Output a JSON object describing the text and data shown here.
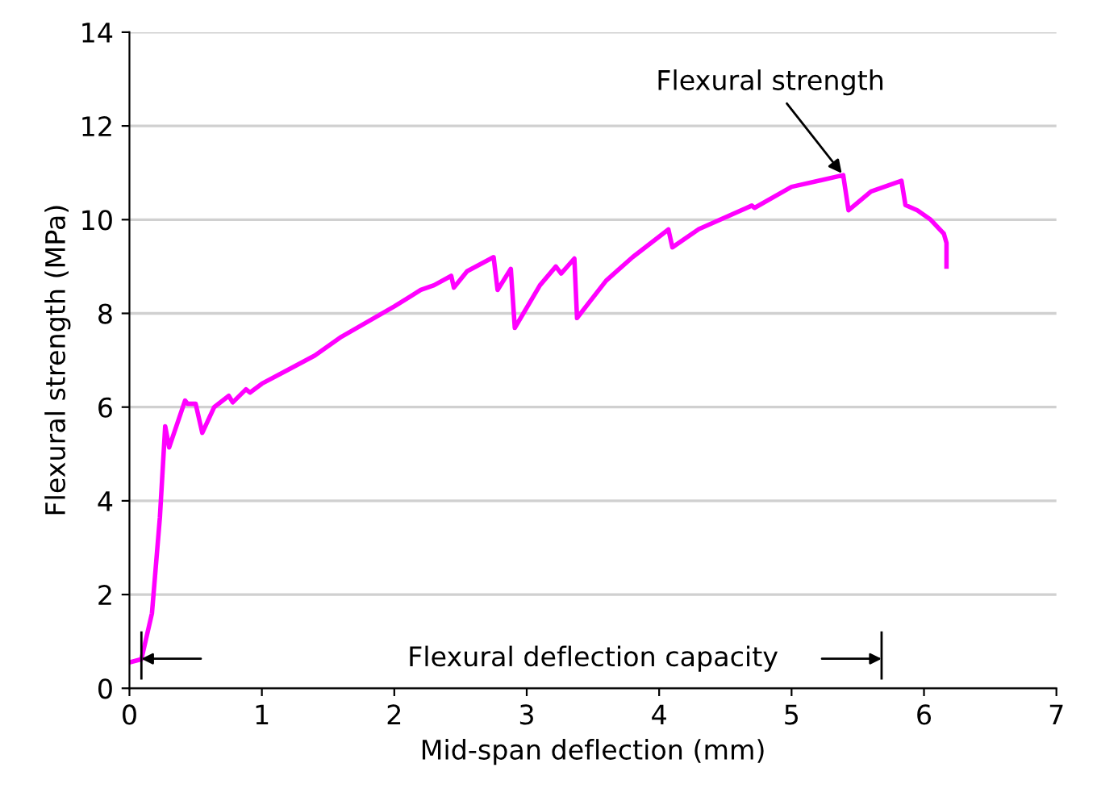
{
  "chart_data": {
    "type": "line",
    "xlabel": "Mid-span deflection (mm)",
    "ylabel": "Flexural strength (MPa)",
    "xlim": [
      0,
      7
    ],
    "xticks": [
      0,
      1,
      2,
      3,
      4,
      5,
      6,
      7
    ],
    "ylim": [
      0,
      14
    ],
    "yticks": [
      0,
      2,
      4,
      6,
      8,
      10,
      12,
      14
    ],
    "grid": "y",
    "marker": "none",
    "line_style": "solid",
    "series": [
      {
        "color": "#ff00ff",
        "x": [
          0,
          0.09,
          0.17,
          0.23,
          0.27,
          0.3,
          0.42,
          0.44,
          0.5,
          0.55,
          0.64,
          0.75,
          0.78,
          0.88,
          0.91,
          1.0,
          1.2,
          1.4,
          1.6,
          2.0,
          2.2,
          2.3,
          2.43,
          2.45,
          2.55,
          2.75,
          2.78,
          2.88,
          2.91,
          3.1,
          3.22,
          3.26,
          3.36,
          3.38,
          3.6,
          3.8,
          4.07,
          4.1,
          4.3,
          4.7,
          4.72,
          5.0,
          5.39,
          5.43,
          5.6,
          5.83,
          5.86,
          5.95,
          6.05,
          6.15,
          6.17,
          6.17
        ],
        "values": [
          0.55,
          0.62,
          1.6,
          3.65,
          5.59,
          5.14,
          6.14,
          6.07,
          6.07,
          5.45,
          6.0,
          6.24,
          6.1,
          6.38,
          6.31,
          6.5,
          6.8,
          7.1,
          7.5,
          8.15,
          8.5,
          8.6,
          8.8,
          8.55,
          8.9,
          9.2,
          8.5,
          8.95,
          7.69,
          8.6,
          9.0,
          8.85,
          9.17,
          7.9,
          8.7,
          9.2,
          9.79,
          9.41,
          9.8,
          10.3,
          10.25,
          10.7,
          10.95,
          10.2,
          10.6,
          10.83,
          10.31,
          10.2,
          10.0,
          9.7,
          9.5,
          9.0
        ]
      }
    ],
    "annotations": [
      {
        "text": "Flexural strength",
        "x": 5.39,
        "y": 10.95
      },
      "Flexural deflection capacity"
    ]
  }
}
